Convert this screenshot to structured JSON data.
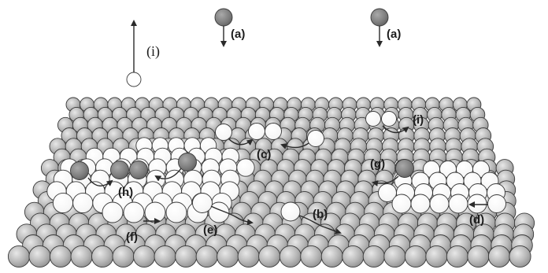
{
  "colors": {
    "background": "#ffffff",
    "substrate_atom": "#b3b3b3",
    "adatom_light": "#ffffff",
    "adatom_dark": "#7a7a7a",
    "outline": "#3a3a3a",
    "arrow": "#2a2a2a"
  },
  "labels": {
    "a": "(a)",
    "b": "(b)",
    "c": "(c)",
    "d": "(d)",
    "e": "(e)",
    "f": "(f)",
    "g": "(g)",
    "h": "(h)",
    "i": "(i)"
  }
}
